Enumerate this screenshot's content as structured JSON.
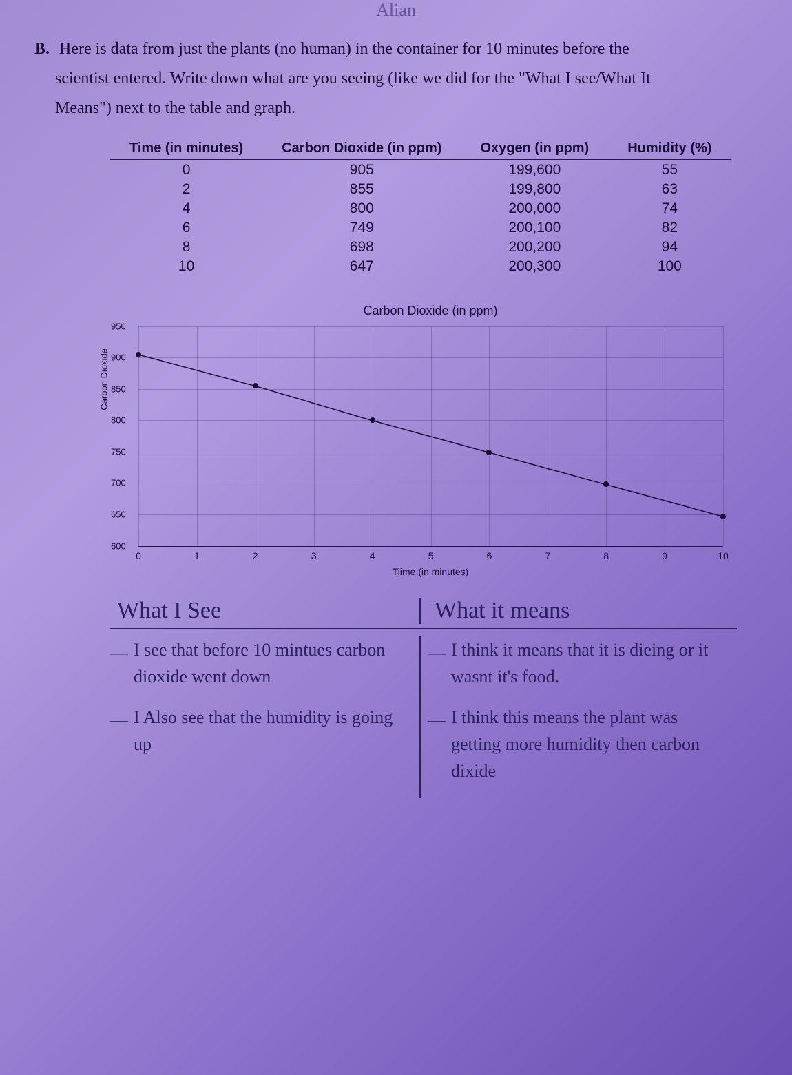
{
  "top_name": "Alian",
  "question": {
    "label": "B.",
    "text_line1": "Here is data from just the plants (no human) in the container for 10 minutes before the",
    "text_line2": "scientist entered. Write down what are you seeing (like we did for the \"What I see/What It",
    "text_line3": "Means\") next to the table and graph."
  },
  "table": {
    "headers": [
      "Time (in minutes)",
      "Carbon Dioxide (in ppm)",
      "Oxygen (in ppm)",
      "Humidity (%)"
    ],
    "rows": [
      [
        "0",
        "905",
        "199,600",
        "55"
      ],
      [
        "2",
        "855",
        "199,800",
        "63"
      ],
      [
        "4",
        "800",
        "200,000",
        "74"
      ],
      [
        "6",
        "749",
        "200,100",
        "82"
      ],
      [
        "8",
        "698",
        "200,200",
        "94"
      ],
      [
        "10",
        "647",
        "200,300",
        "100"
      ]
    ]
  },
  "chart": {
    "type": "line",
    "title": "Carbon Dioxide (in ppm)",
    "ylabel": "Carbon Dioxide",
    "xlabel": "Tiime (in minutes)",
    "ylim": [
      600,
      950
    ],
    "ytick_step": 50,
    "yticks": [
      600,
      650,
      700,
      750,
      800,
      850,
      900,
      950
    ],
    "xlim": [
      0,
      10
    ],
    "xtick_step": 1,
    "xticks": [
      0,
      1,
      2,
      3,
      4,
      5,
      6,
      7,
      8,
      9,
      10
    ],
    "x": [
      0,
      2,
      4,
      6,
      8,
      10
    ],
    "y": [
      905,
      855,
      800,
      749,
      698,
      647
    ],
    "line_color": "#1a0a3a",
    "marker_color": "#1a0a3a",
    "marker_size": 8,
    "grid_color": "rgba(42,16,80,0.25)",
    "background_color": "transparent",
    "title_fontsize": 18,
    "label_fontsize": 13
  },
  "handwritten": {
    "left_header": "What I See",
    "right_header": "What it means",
    "left_items": [
      "I see that before 10 mintues carbon dioxide went down",
      "I Also see that the humidity is going up"
    ],
    "right_items": [
      "I think it means that it is dieing or it wasnt it's food.",
      "I think this means the plant was getting more humidity then carbon dixide"
    ]
  },
  "colors": {
    "text": "#1a0a3a",
    "handwriting": "#2a2060",
    "bg_start": "#a18cd1",
    "bg_end": "#6b4fb3"
  }
}
